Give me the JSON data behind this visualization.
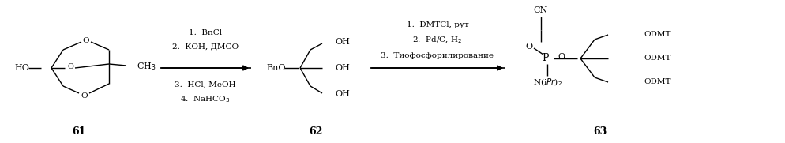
{
  "bg": "#ffffff",
  "lc": "#000000",
  "tc": "#000000",
  "fw": 9.95,
  "fh": 1.81,
  "dpi": 100,
  "arrow1_labels": [
    "1.  BnCl",
    "2.  КОН, ДМСО",
    "3.  HCl, MeOH",
    "4.  NaHCO$_3$"
  ],
  "arrow2_labels": [
    "1.  DMTCl, рут",
    "2.  Pd/C, H$_2$",
    "3.  Тиофосфорилирование"
  ]
}
